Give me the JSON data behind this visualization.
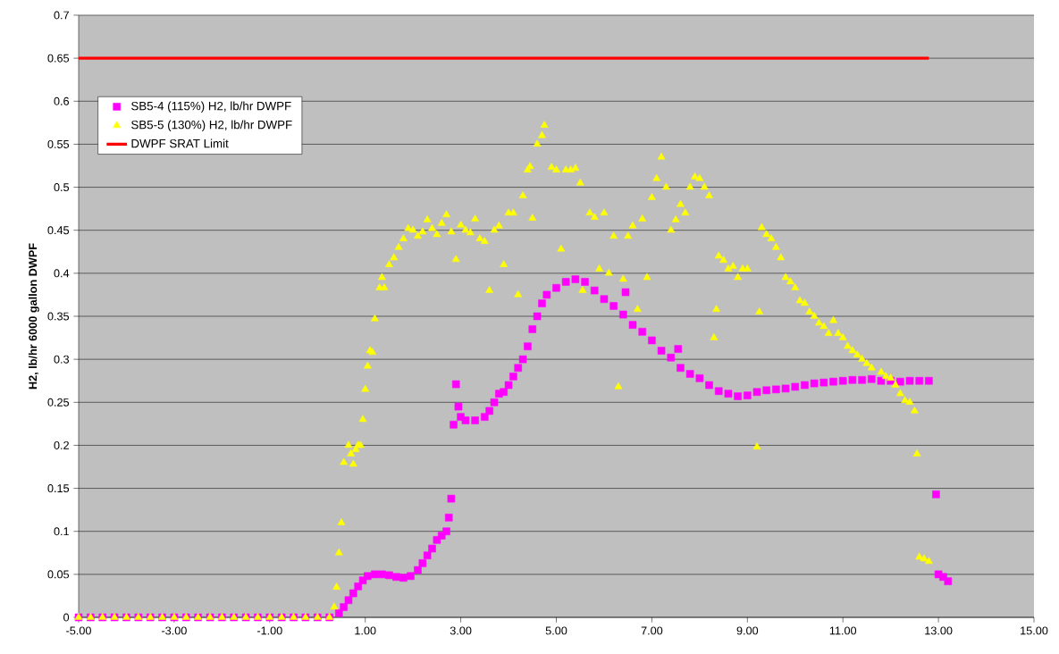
{
  "chart_data": {
    "type": "scatter",
    "ylabel": "H2, lb/hr 6000 gallon DWPF",
    "xlim": [
      -5,
      15
    ],
    "ylim": [
      0,
      0.7
    ],
    "xticks": [
      {
        "value": -5,
        "label": "-5.00"
      },
      {
        "value": -3,
        "label": "-3.00"
      },
      {
        "value": -1,
        "label": "-1.00"
      },
      {
        "value": 1,
        "label": "1.00"
      },
      {
        "value": 3,
        "label": "3.00"
      },
      {
        "value": 5,
        "label": "5.00"
      },
      {
        "value": 7,
        "label": "7.00"
      },
      {
        "value": 9,
        "label": "9.00"
      },
      {
        "value": 11,
        "label": "11.00"
      },
      {
        "value": 13,
        "label": "13.00"
      },
      {
        "value": 15,
        "label": "15.00"
      }
    ],
    "yticks": [
      0,
      0.05,
      0.1,
      0.15,
      0.2,
      0.25,
      0.3,
      0.35,
      0.4,
      0.45,
      0.5,
      0.55,
      0.6,
      0.65,
      0.7
    ],
    "grid": "y",
    "legend": "top left",
    "series": [
      {
        "name": "SB5-4 (115%) H2, lb/hr DWPF",
        "marker": "square",
        "color": "#ff00ff",
        "x": [
          -5,
          -4.75,
          -4.5,
          -4.25,
          -4,
          -3.75,
          -3.5,
          -3.25,
          -3,
          -2.75,
          -2.5,
          -2.25,
          -2,
          -1.75,
          -1.5,
          -1.25,
          -1,
          -0.75,
          -0.5,
          -0.25,
          0,
          0.25,
          0.45,
          0.55,
          0.65,
          0.75,
          0.85,
          0.95,
          1.05,
          1.2,
          1.35,
          1.5,
          1.65,
          1.8,
          1.95,
          2.1,
          2.2,
          2.3,
          2.4,
          2.5,
          2.6,
          2.7,
          2.75,
          2.8,
          2.85,
          2.9,
          2.95,
          3.0,
          3.1,
          3.3,
          3.5,
          3.6,
          3.7,
          3.8,
          3.9,
          4.0,
          4.1,
          4.2,
          4.3,
          4.4,
          4.5,
          4.6,
          4.7,
          4.8,
          5.0,
          5.2,
          5.4,
          5.6,
          5.8,
          6.0,
          6.2,
          6.4,
          6.45,
          6.6,
          6.8,
          7.0,
          7.2,
          7.4,
          7.55,
          7.6,
          7.8,
          8.0,
          8.2,
          8.4,
          8.6,
          8.8,
          9.0,
          9.2,
          9.4,
          9.6,
          9.8,
          10.0,
          10.2,
          10.4,
          10.6,
          10.8,
          11.0,
          11.2,
          11.4,
          11.6,
          11.8,
          12.0,
          12.2,
          12.4,
          12.6,
          12.8,
          12.95,
          13.0,
          13.1,
          13.2
        ],
        "values": [
          0,
          0,
          0,
          0,
          0,
          0,
          0,
          0,
          0,
          0,
          0,
          0,
          0,
          0,
          0,
          0,
          0,
          0,
          0,
          0,
          0,
          0,
          0.005,
          0.012,
          0.02,
          0.028,
          0.036,
          0.043,
          0.048,
          0.05,
          0.05,
          0.049,
          0.047,
          0.046,
          0.048,
          0.055,
          0.063,
          0.072,
          0.08,
          0.09,
          0.095,
          0.1,
          0.116,
          0.138,
          0.224,
          0.271,
          0.245,
          0.233,
          0.229,
          0.229,
          0.233,
          0.24,
          0.25,
          0.26,
          0.262,
          0.27,
          0.28,
          0.29,
          0.3,
          0.315,
          0.335,
          0.35,
          0.365,
          0.375,
          0.383,
          0.39,
          0.393,
          0.39,
          0.38,
          0.37,
          0.362,
          0.352,
          0.378,
          0.34,
          0.332,
          0.322,
          0.31,
          0.302,
          0.312,
          0.29,
          0.283,
          0.278,
          0.27,
          0.263,
          0.26,
          0.257,
          0.258,
          0.262,
          0.264,
          0.265,
          0.266,
          0.268,
          0.27,
          0.272,
          0.273,
          0.274,
          0.275,
          0.276,
          0.276,
          0.277,
          0.275,
          0.275,
          0.274,
          0.275,
          0.275,
          0.275,
          0.143,
          0.05,
          0.047,
          0.042
        ]
      },
      {
        "name": "SB5-5 (130%) H2, lb/hr DWPF",
        "marker": "triangle",
        "color": "#ffff00",
        "x": [
          -5,
          -4.75,
          -4.5,
          -4.25,
          -4,
          -3.75,
          -3.5,
          -3.25,
          -3,
          -2.75,
          -2.5,
          -2.25,
          -2,
          -1.75,
          -1.5,
          -1.25,
          -1,
          -0.75,
          -0.5,
          -0.25,
          0,
          0.25,
          0.35,
          0.4,
          0.45,
          0.5,
          0.55,
          0.65,
          0.7,
          0.75,
          0.8,
          0.85,
          0.9,
          0.95,
          1.0,
          1.05,
          1.1,
          1.15,
          1.2,
          1.3,
          1.35,
          1.4,
          1.5,
          1.6,
          1.7,
          1.8,
          1.9,
          2.0,
          2.1,
          2.2,
          2.3,
          2.4,
          2.5,
          2.6,
          2.7,
          2.8,
          2.9,
          3.0,
          3.1,
          3.2,
          3.3,
          3.4,
          3.5,
          3.6,
          3.7,
          3.8,
          3.9,
          4.0,
          4.1,
          4.2,
          4.3,
          4.4,
          4.45,
          4.5,
          4.6,
          4.7,
          4.75,
          4.9,
          5.0,
          5.1,
          5.2,
          5.3,
          5.4,
          5.5,
          5.55,
          5.7,
          5.8,
          5.9,
          6.0,
          6.1,
          6.2,
          6.3,
          6.4,
          6.5,
          6.6,
          6.7,
          6.8,
          6.9,
          7.0,
          7.1,
          7.2,
          7.3,
          7.4,
          7.5,
          7.6,
          7.7,
          7.8,
          7.9,
          8.0,
          8.1,
          8.2,
          8.3,
          8.35,
          8.4,
          8.5,
          8.6,
          8.7,
          8.8,
          8.9,
          9.0,
          9.2,
          9.25,
          9.3,
          9.4,
          9.5,
          9.6,
          9.7,
          9.8,
          9.9,
          10.0,
          10.1,
          10.2,
          10.3,
          10.4,
          10.5,
          10.6,
          10.7,
          10.8,
          10.9,
          11.0,
          11.1,
          11.2,
          11.3,
          11.4,
          11.5,
          11.6,
          11.8,
          11.9,
          12.0,
          12.1,
          12.2,
          12.3,
          12.4,
          12.5,
          12.55,
          12.6,
          12.7,
          12.8
        ],
        "values": [
          0,
          0,
          0,
          0,
          0,
          0,
          0,
          0,
          0,
          0,
          0,
          0,
          0,
          0,
          0,
          0,
          0,
          0,
          0,
          0,
          0,
          0,
          0.012,
          0.035,
          0.075,
          0.11,
          0.18,
          0.2,
          0.19,
          0.178,
          0.195,
          0.2,
          0.2,
          0.23,
          0.265,
          0.292,
          0.31,
          0.308,
          0.347,
          0.383,
          0.395,
          0.383,
          0.41,
          0.418,
          0.43,
          0.44,
          0.452,
          0.45,
          0.443,
          0.448,
          0.462,
          0.452,
          0.445,
          0.458,
          0.468,
          0.448,
          0.416,
          0.456,
          0.45,
          0.447,
          0.463,
          0.44,
          0.437,
          0.38,
          0.45,
          0.455,
          0.41,
          0.47,
          0.47,
          0.375,
          0.49,
          0.52,
          0.524,
          0.464,
          0.55,
          0.56,
          0.572,
          0.523,
          0.52,
          0.428,
          0.52,
          0.52,
          0.522,
          0.505,
          0.38,
          0.47,
          0.465,
          0.405,
          0.47,
          0.4,
          0.443,
          0.268,
          0.393,
          0.443,
          0.455,
          0.358,
          0.463,
          0.395,
          0.488,
          0.51,
          0.535,
          0.5,
          0.45,
          0.462,
          0.48,
          0.47,
          0.5,
          0.512,
          0.51,
          0.5,
          0.49,
          0.325,
          0.358,
          0.42,
          0.415,
          0.405,
          0.408,
          0.395,
          0.405,
          0.405,
          0.198,
          0.355,
          0.453,
          0.445,
          0.44,
          0.43,
          0.418,
          0.395,
          0.39,
          0.383,
          0.368,
          0.365,
          0.355,
          0.35,
          0.342,
          0.338,
          0.33,
          0.345,
          0.33,
          0.325,
          0.315,
          0.31,
          0.305,
          0.3,
          0.295,
          0.29,
          0.285,
          0.28,
          0.278,
          0.27,
          0.26,
          0.252,
          0.25,
          0.24,
          0.19,
          0.07,
          0.068,
          0.065
        ]
      },
      {
        "name": "DWPF SRAT Limit",
        "type": "line",
        "marker": "none",
        "line_style": "solid",
        "color": "#ff0000",
        "x": [
          -5,
          12.8
        ],
        "values": [
          0.65,
          0.65
        ]
      }
    ]
  }
}
